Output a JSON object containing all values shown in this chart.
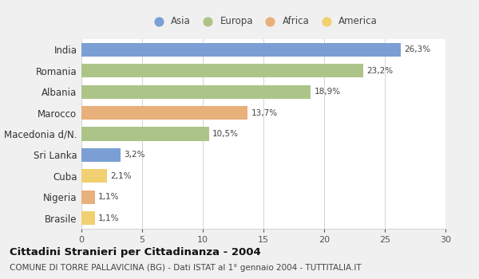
{
  "categories": [
    "India",
    "Romania",
    "Albania",
    "Marocco",
    "Macedonia d/N.",
    "Sri Lanka",
    "Cuba",
    "Nigeria",
    "Brasile"
  ],
  "values": [
    26.3,
    23.2,
    18.9,
    13.7,
    10.5,
    3.2,
    2.1,
    1.1,
    1.1
  ],
  "labels": [
    "26,3%",
    "23,2%",
    "18,9%",
    "13,7%",
    "10,5%",
    "3,2%",
    "2,1%",
    "1,1%",
    "1,1%"
  ],
  "colors": [
    "#7b9fd4",
    "#adc489",
    "#adc489",
    "#e8b07a",
    "#adc489",
    "#7b9fd4",
    "#f0d070",
    "#e8b07a",
    "#f0d070"
  ],
  "legend": [
    {
      "label": "Asia",
      "color": "#7b9fd4"
    },
    {
      "label": "Europa",
      "color": "#adc489"
    },
    {
      "label": "Africa",
      "color": "#e8b07a"
    },
    {
      "label": "America",
      "color": "#f0d070"
    }
  ],
  "xlim": [
    0,
    30
  ],
  "xticks": [
    0,
    5,
    10,
    15,
    20,
    25,
    30
  ],
  "title": "Cittadini Stranieri per Cittadinanza - 2004",
  "subtitle": "COMUNE DI TORRE PALLAVICINA (BG) - Dati ISTAT al 1° gennaio 2004 - TUTTITALIA.IT",
  "bg_color": "#f0f0f0",
  "plot_bg_color": "#ffffff"
}
